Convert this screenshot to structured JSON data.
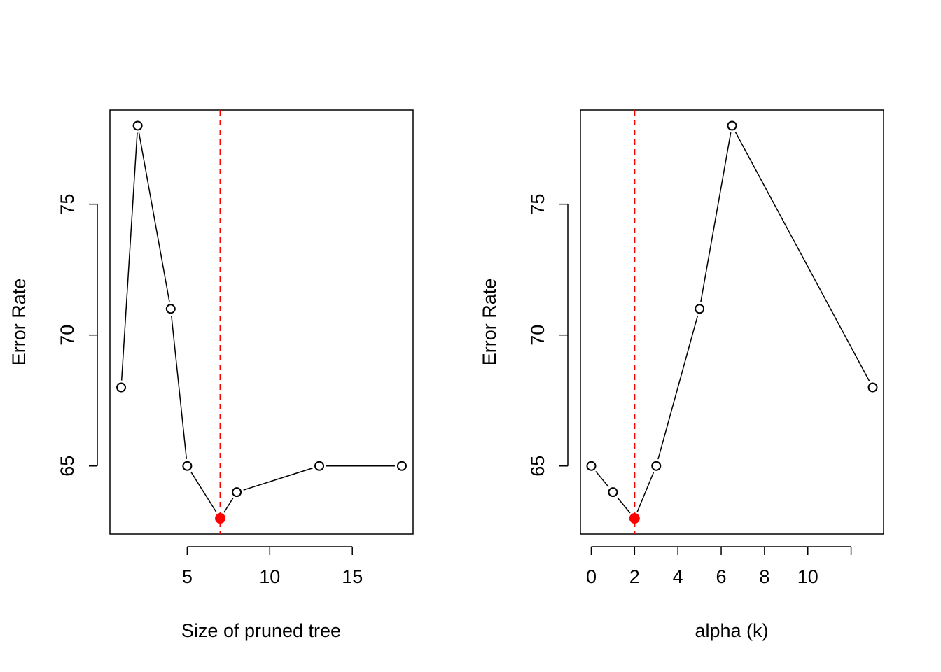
{
  "chart_data": [
    {
      "type": "line",
      "title": "",
      "xlabel": "Size of pruned tree",
      "ylabel": "Error Rate",
      "xlim": [
        0.32,
        18.68
      ],
      "ylim": [
        62.4,
        78.6
      ],
      "x_ticks": [
        5,
        10,
        15
      ],
      "y_ticks": [
        65,
        70,
        75
      ],
      "x_tick_labels": [
        "5",
        "10",
        "15"
      ],
      "y_tick_labels": [
        "65",
        "70",
        "75"
      ],
      "grid": false,
      "legend": "none",
      "series": [
        {
          "x": [
            1,
            2,
            4,
            5,
            7,
            8,
            13,
            18
          ],
          "y": [
            68,
            78,
            71,
            65,
            63,
            64,
            65,
            65
          ],
          "marker": "open-circle",
          "line_color": "#000000"
        }
      ],
      "highlight_point": {
        "x": 7,
        "y": 63,
        "color": "#ff0000"
      },
      "vline": {
        "x": 7,
        "style": "dashed",
        "color": "#ff0000"
      }
    },
    {
      "type": "line",
      "title": "",
      "xlabel": "alpha (k)",
      "ylabel": "Error Rate",
      "xlim": [
        -0.5,
        13.5
      ],
      "ylim": [
        62.4,
        78.6
      ],
      "x_ticks": [
        0,
        2,
        4,
        6,
        8,
        10,
        12
      ],
      "x_tick_labels": [
        "0",
        "2",
        "4",
        "6",
        "8",
        "10",
        ""
      ],
      "y_ticks": [
        65,
        70,
        75
      ],
      "y_tick_labels": [
        "65",
        "70",
        "75"
      ],
      "grid": false,
      "legend": "none",
      "series": [
        {
          "x": [
            0,
            1,
            2,
            3,
            5,
            6.5,
            13
          ],
          "y": [
            65,
            64,
            63,
            65,
            71,
            78,
            68
          ],
          "marker": "open-circle",
          "line_color": "#000000"
        }
      ],
      "highlight_point": {
        "x": 2,
        "y": 63,
        "color": "#ff0000"
      },
      "vline": {
        "x": 2,
        "style": "dashed",
        "color": "#ff0000"
      }
    }
  ]
}
